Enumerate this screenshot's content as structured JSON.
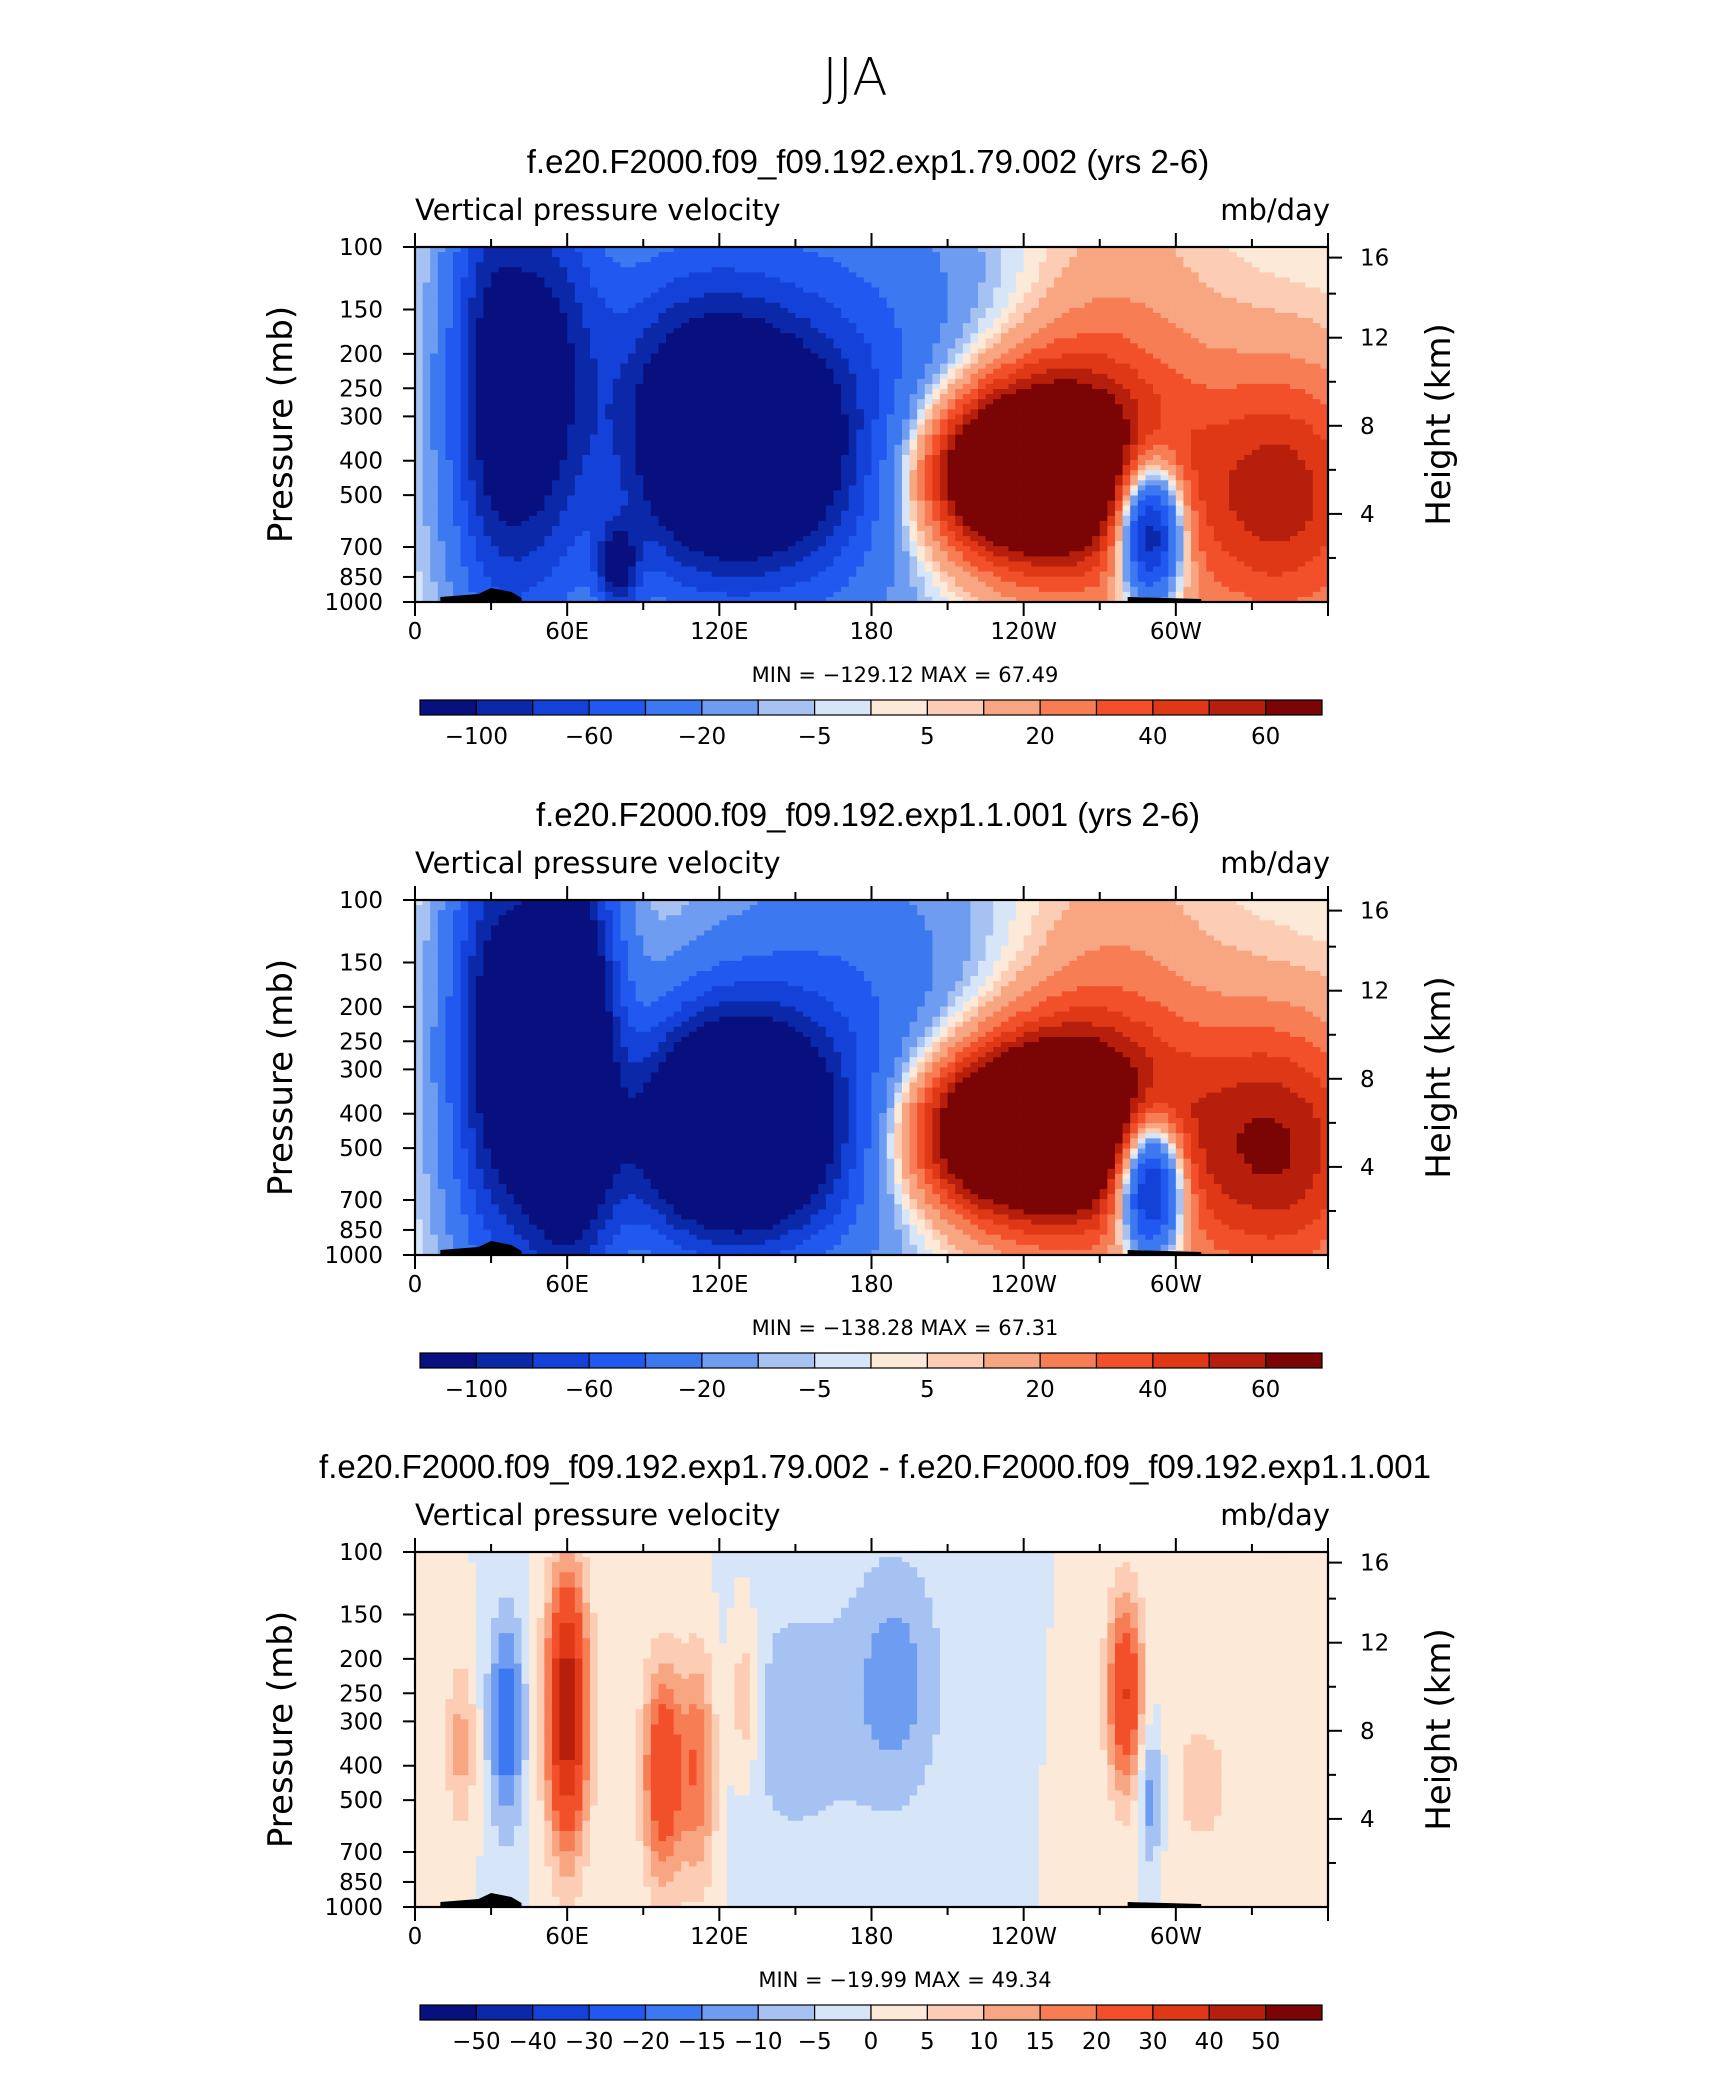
{
  "figure_title": "JJA",
  "colors": {
    "palette": [
      "#08107f",
      "#0a28a8",
      "#1442d8",
      "#2058f0",
      "#3c78f0",
      "#6e9cf0",
      "#a6c2f2",
      "#d6e6f8",
      "#fde9d8",
      "#fccdb4",
      "#f8a582",
      "#f77d54",
      "#f2502a",
      "#df3816",
      "#b61f0b",
      "#7b0404"
    ],
    "topography": "#000000"
  },
  "panels": [
    {
      "title": "f.e20.F2000.f09_f09.192.exp1.79.002 (yrs 2-6)",
      "left_string": "Vertical pressure velocity",
      "right_string": "mb/day",
      "stats": "MIN =  −129.12   MAX =   67.49",
      "colorbar_labels": [
        {
          "i": 1,
          "t": "−100"
        },
        {
          "i": 3,
          "t": "−60"
        },
        {
          "i": 5,
          "t": "−20"
        },
        {
          "i": 7,
          "t": "−5"
        },
        {
          "i": 9,
          "t": "5"
        },
        {
          "i": 11,
          "t": "20"
        },
        {
          "i": 13,
          "t": "40"
        },
        {
          "i": 15,
          "t": "60"
        }
      ]
    },
    {
      "title": "f.e20.F2000.f09_f09.192.exp1.1.001 (yrs 2-6)",
      "left_string": "Vertical pressure velocity",
      "right_string": "mb/day",
      "stats": "MIN =  −138.28   MAX =   67.31",
      "colorbar_labels": [
        {
          "i": 1,
          "t": "−100"
        },
        {
          "i": 3,
          "t": "−60"
        },
        {
          "i": 5,
          "t": "−20"
        },
        {
          "i": 7,
          "t": "−5"
        },
        {
          "i": 9,
          "t": "5"
        },
        {
          "i": 11,
          "t": "20"
        },
        {
          "i": 13,
          "t": "40"
        },
        {
          "i": 15,
          "t": "60"
        }
      ]
    },
    {
      "title": "f.e20.F2000.f09_f09.192.exp1.79.002 - f.e20.F2000.f09_f09.192.exp1.1.001",
      "left_string": "Vertical pressure velocity",
      "right_string": "mb/day",
      "stats": "MIN =  −19.99   MAX =   49.34",
      "colorbar_labels": [
        {
          "i": 1,
          "t": "−50"
        },
        {
          "i": 2,
          "t": "−40"
        },
        {
          "i": 3,
          "t": "−30"
        },
        {
          "i": 4,
          "t": "−20"
        },
        {
          "i": 5,
          "t": "−15"
        },
        {
          "i": 6,
          "t": "−10"
        },
        {
          "i": 7,
          "t": "−5"
        },
        {
          "i": 8,
          "t": "0"
        },
        {
          "i": 9,
          "t": "5"
        },
        {
          "i": 10,
          "t": "10"
        },
        {
          "i": 11,
          "t": "15"
        },
        {
          "i": 12,
          "t": "20"
        },
        {
          "i": 13,
          "t": "30"
        },
        {
          "i": 14,
          "t": "40"
        },
        {
          "i": 15,
          "t": "50"
        }
      ]
    }
  ],
  "chart_data": [
    {
      "type": "heatmap",
      "title": "f.e20.F2000.f09_f09.192.exp1.79.002 (yrs 2-6)",
      "variable": "Vertical pressure velocity",
      "units": "mb/day",
      "xlabel": "",
      "ylabel": "Pressure (mb)",
      "y2label": "Height (km)",
      "x_tick_labels": [
        {
          "v": 0,
          "t": "0"
        },
        {
          "v": 60,
          "t": "60E"
        },
        {
          "v": 120,
          "t": "120E"
        },
        {
          "v": 180,
          "t": "180"
        },
        {
          "v": 240,
          "t": "120W"
        },
        {
          "v": 300,
          "t": "60W"
        }
      ],
      "y_tick_labels": [
        {
          "v": 100,
          "t": "100"
        },
        {
          "v": 150,
          "t": "150"
        },
        {
          "v": 200,
          "t": "200"
        },
        {
          "v": 250,
          "t": "250"
        },
        {
          "v": 300,
          "t": "300"
        },
        {
          "v": 400,
          "t": "400"
        },
        {
          "v": 500,
          "t": "500"
        },
        {
          "v": 700,
          "t": "700"
        },
        {
          "v": 850,
          "t": "850"
        },
        {
          "v": 1000,
          "t": "1000"
        }
      ],
      "y2_tick_labels": [
        {
          "v": 16,
          "t": "16"
        },
        {
          "v": 12,
          "t": "12"
        },
        {
          "v": 8,
          "t": "8"
        },
        {
          "v": 4,
          "t": "4"
        }
      ],
      "xlim": [
        0,
        360
      ],
      "ylim_pressure": [
        1000,
        100
      ],
      "min": -129.12,
      "max": 67.49,
      "levels": [
        -100,
        -80,
        -60,
        -40,
        -20,
        -10,
        -5,
        0,
        5,
        10,
        20,
        30,
        40,
        50,
        60
      ],
      "features": [
        {
          "lon": 28,
          "p": 170,
          "w": 14,
          "hp": 600,
          "v": -40
        },
        {
          "lon": 40,
          "p": 300,
          "w": 24,
          "hp": 850,
          "v": -100
        },
        {
          "lon": 56,
          "p": 180,
          "w": 20,
          "hp": 500,
          "v": -40
        },
        {
          "lon": 80,
          "p": 350,
          "w": 30,
          "hp": 380,
          "v": 40
        },
        {
          "lon": 80,
          "p": 800,
          "w": 8,
          "hp": 250,
          "v": -90
        },
        {
          "lon": 108,
          "p": 300,
          "w": 45,
          "hp": 500,
          "v": -110
        },
        {
          "lon": 134,
          "p": 400,
          "w": 50,
          "hp": 450,
          "v": -110
        },
        {
          "lon": 172,
          "p": 250,
          "w": 60,
          "hp": 800,
          "v": -40
        },
        {
          "lon": 222,
          "p": 430,
          "w": 45,
          "hp": 330,
          "v": 70
        },
        {
          "lon": 248,
          "p": 420,
          "w": 40,
          "hp": 400,
          "v": 70
        },
        {
          "lon": 290,
          "p": 630,
          "w": 12,
          "hp": 340,
          "v": -130
        },
        {
          "lon": 275,
          "p": 300,
          "w": 40,
          "hp": 900,
          "v": 25
        },
        {
          "lon": 342,
          "p": 500,
          "w": 40,
          "hp": 700,
          "v": 55
        }
      ]
    },
    {
      "type": "heatmap",
      "title": "f.e20.F2000.f09_f09.192.exp1.1.001 (yrs 2-6)",
      "variable": "Vertical pressure velocity",
      "units": "mb/day",
      "xlabel": "",
      "ylabel": "Pressure (mb)",
      "y2label": "Height (km)",
      "x_tick_labels": [
        {
          "v": 0,
          "t": "0"
        },
        {
          "v": 60,
          "t": "60E"
        },
        {
          "v": 120,
          "t": "120E"
        },
        {
          "v": 180,
          "t": "180"
        },
        {
          "v": 240,
          "t": "120W"
        },
        {
          "v": 300,
          "t": "60W"
        }
      ],
      "y_tick_labels": [
        {
          "v": 100,
          "t": "100"
        },
        {
          "v": 150,
          "t": "150"
        },
        {
          "v": 200,
          "t": "200"
        },
        {
          "v": 250,
          "t": "250"
        },
        {
          "v": 300,
          "t": "300"
        },
        {
          "v": 400,
          "t": "400"
        },
        {
          "v": 500,
          "t": "500"
        },
        {
          "v": 700,
          "t": "700"
        },
        {
          "v": 850,
          "t": "850"
        },
        {
          "v": 1000,
          "t": "1000"
        }
      ],
      "y2_tick_labels": [
        {
          "v": 16,
          "t": "16"
        },
        {
          "v": 12,
          "t": "12"
        },
        {
          "v": 8,
          "t": "8"
        },
        {
          "v": 4,
          "t": "4"
        }
      ],
      "xlim": [
        0,
        360
      ],
      "ylim_pressure": [
        1000,
        100
      ],
      "min": -138.28,
      "max": 67.31,
      "levels": [
        -100,
        -80,
        -60,
        -40,
        -20,
        -10,
        -5,
        0,
        5,
        10,
        20,
        30,
        40,
        50,
        60
      ],
      "features": [
        {
          "lon": 28,
          "p": 180,
          "w": 14,
          "hp": 600,
          "v": -40
        },
        {
          "lon": 40,
          "p": 300,
          "w": 24,
          "hp": 850,
          "v": -100
        },
        {
          "lon": 56,
          "p": 190,
          "w": 20,
          "hp": 500,
          "v": -40
        },
        {
          "lon": 80,
          "p": 350,
          "w": 30,
          "hp": 380,
          "v": 45
        },
        {
          "lon": 63,
          "p": 300,
          "w": 18,
          "hp": 800,
          "v": -140
        },
        {
          "lon": 112,
          "p": 420,
          "w": 40,
          "hp": 450,
          "v": -130
        },
        {
          "lon": 134,
          "p": 450,
          "w": 40,
          "hp": 450,
          "v": -120
        },
        {
          "lon": 170,
          "p": 260,
          "w": 55,
          "hp": 800,
          "v": -40
        },
        {
          "lon": 222,
          "p": 450,
          "w": 48,
          "hp": 330,
          "v": 70
        },
        {
          "lon": 250,
          "p": 430,
          "w": 42,
          "hp": 400,
          "v": 70
        },
        {
          "lon": 290,
          "p": 640,
          "w": 12,
          "hp": 340,
          "v": -130
        },
        {
          "lon": 275,
          "p": 300,
          "w": 40,
          "hp": 900,
          "v": 25
        },
        {
          "lon": 340,
          "p": 500,
          "w": 40,
          "hp": 700,
          "v": 60
        }
      ]
    },
    {
      "type": "heatmap",
      "title": "f.e20.F2000.f09_f09.192.exp1.79.002 - f.e20.F2000.f09_f09.192.exp1.1.001",
      "variable": "Vertical pressure velocity",
      "units": "mb/day",
      "xlabel": "",
      "ylabel": "Pressure (mb)",
      "y2label": "Height (km)",
      "x_tick_labels": [
        {
          "v": 0,
          "t": "0"
        },
        {
          "v": 60,
          "t": "60E"
        },
        {
          "v": 120,
          "t": "120E"
        },
        {
          "v": 180,
          "t": "180"
        },
        {
          "v": 240,
          "t": "120W"
        },
        {
          "v": 300,
          "t": "60W"
        }
      ],
      "y_tick_labels": [
        {
          "v": 100,
          "t": "100"
        },
        {
          "v": 150,
          "t": "150"
        },
        {
          "v": 200,
          "t": "200"
        },
        {
          "v": 250,
          "t": "250"
        },
        {
          "v": 300,
          "t": "300"
        },
        {
          "v": 400,
          "t": "400"
        },
        {
          "v": 500,
          "t": "500"
        },
        {
          "v": 700,
          "t": "700"
        },
        {
          "v": 850,
          "t": "850"
        },
        {
          "v": 1000,
          "t": "1000"
        }
      ],
      "y2_tick_labels": [
        {
          "v": 16,
          "t": "16"
        },
        {
          "v": 12,
          "t": "12"
        },
        {
          "v": 8,
          "t": "8"
        },
        {
          "v": 4,
          "t": "4"
        }
      ],
      "xlim": [
        0,
        360
      ],
      "ylim_pressure": [
        1000,
        100
      ],
      "min": -19.99,
      "max": 49.34,
      "levels": [
        -50,
        -40,
        -30,
        -20,
        -15,
        -10,
        -5,
        0,
        5,
        10,
        15,
        20,
        30,
        40,
        50
      ],
      "features": [
        {
          "lon": 18,
          "p": 350,
          "w": 6,
          "hp": 250,
          "v": 12
        },
        {
          "lon": 36,
          "p": 300,
          "w": 7,
          "hp": 300,
          "v": -20
        },
        {
          "lon": 60,
          "p": 280,
          "w": 8,
          "hp": 380,
          "v": 48
        },
        {
          "lon": 98,
          "p": 420,
          "w": 8,
          "hp": 420,
          "v": 30
        },
        {
          "lon": 112,
          "p": 400,
          "w": 7,
          "hp": 450,
          "v": 20
        },
        {
          "lon": 130,
          "p": 260,
          "w": 6,
          "hp": 200,
          "v": 12
        },
        {
          "lon": 150,
          "p": 300,
          "w": 28,
          "hp": 450,
          "v": -8
        },
        {
          "lon": 190,
          "p": 230,
          "w": 18,
          "hp": 300,
          "v": -12
        },
        {
          "lon": 280,
          "p": 250,
          "w": 7,
          "hp": 220,
          "v": 30
        },
        {
          "lon": 290,
          "p": 480,
          "w": 5,
          "hp": 300,
          "v": -15
        },
        {
          "lon": 310,
          "p": 450,
          "w": 20,
          "hp": 500,
          "v": 6
        }
      ]
    }
  ]
}
